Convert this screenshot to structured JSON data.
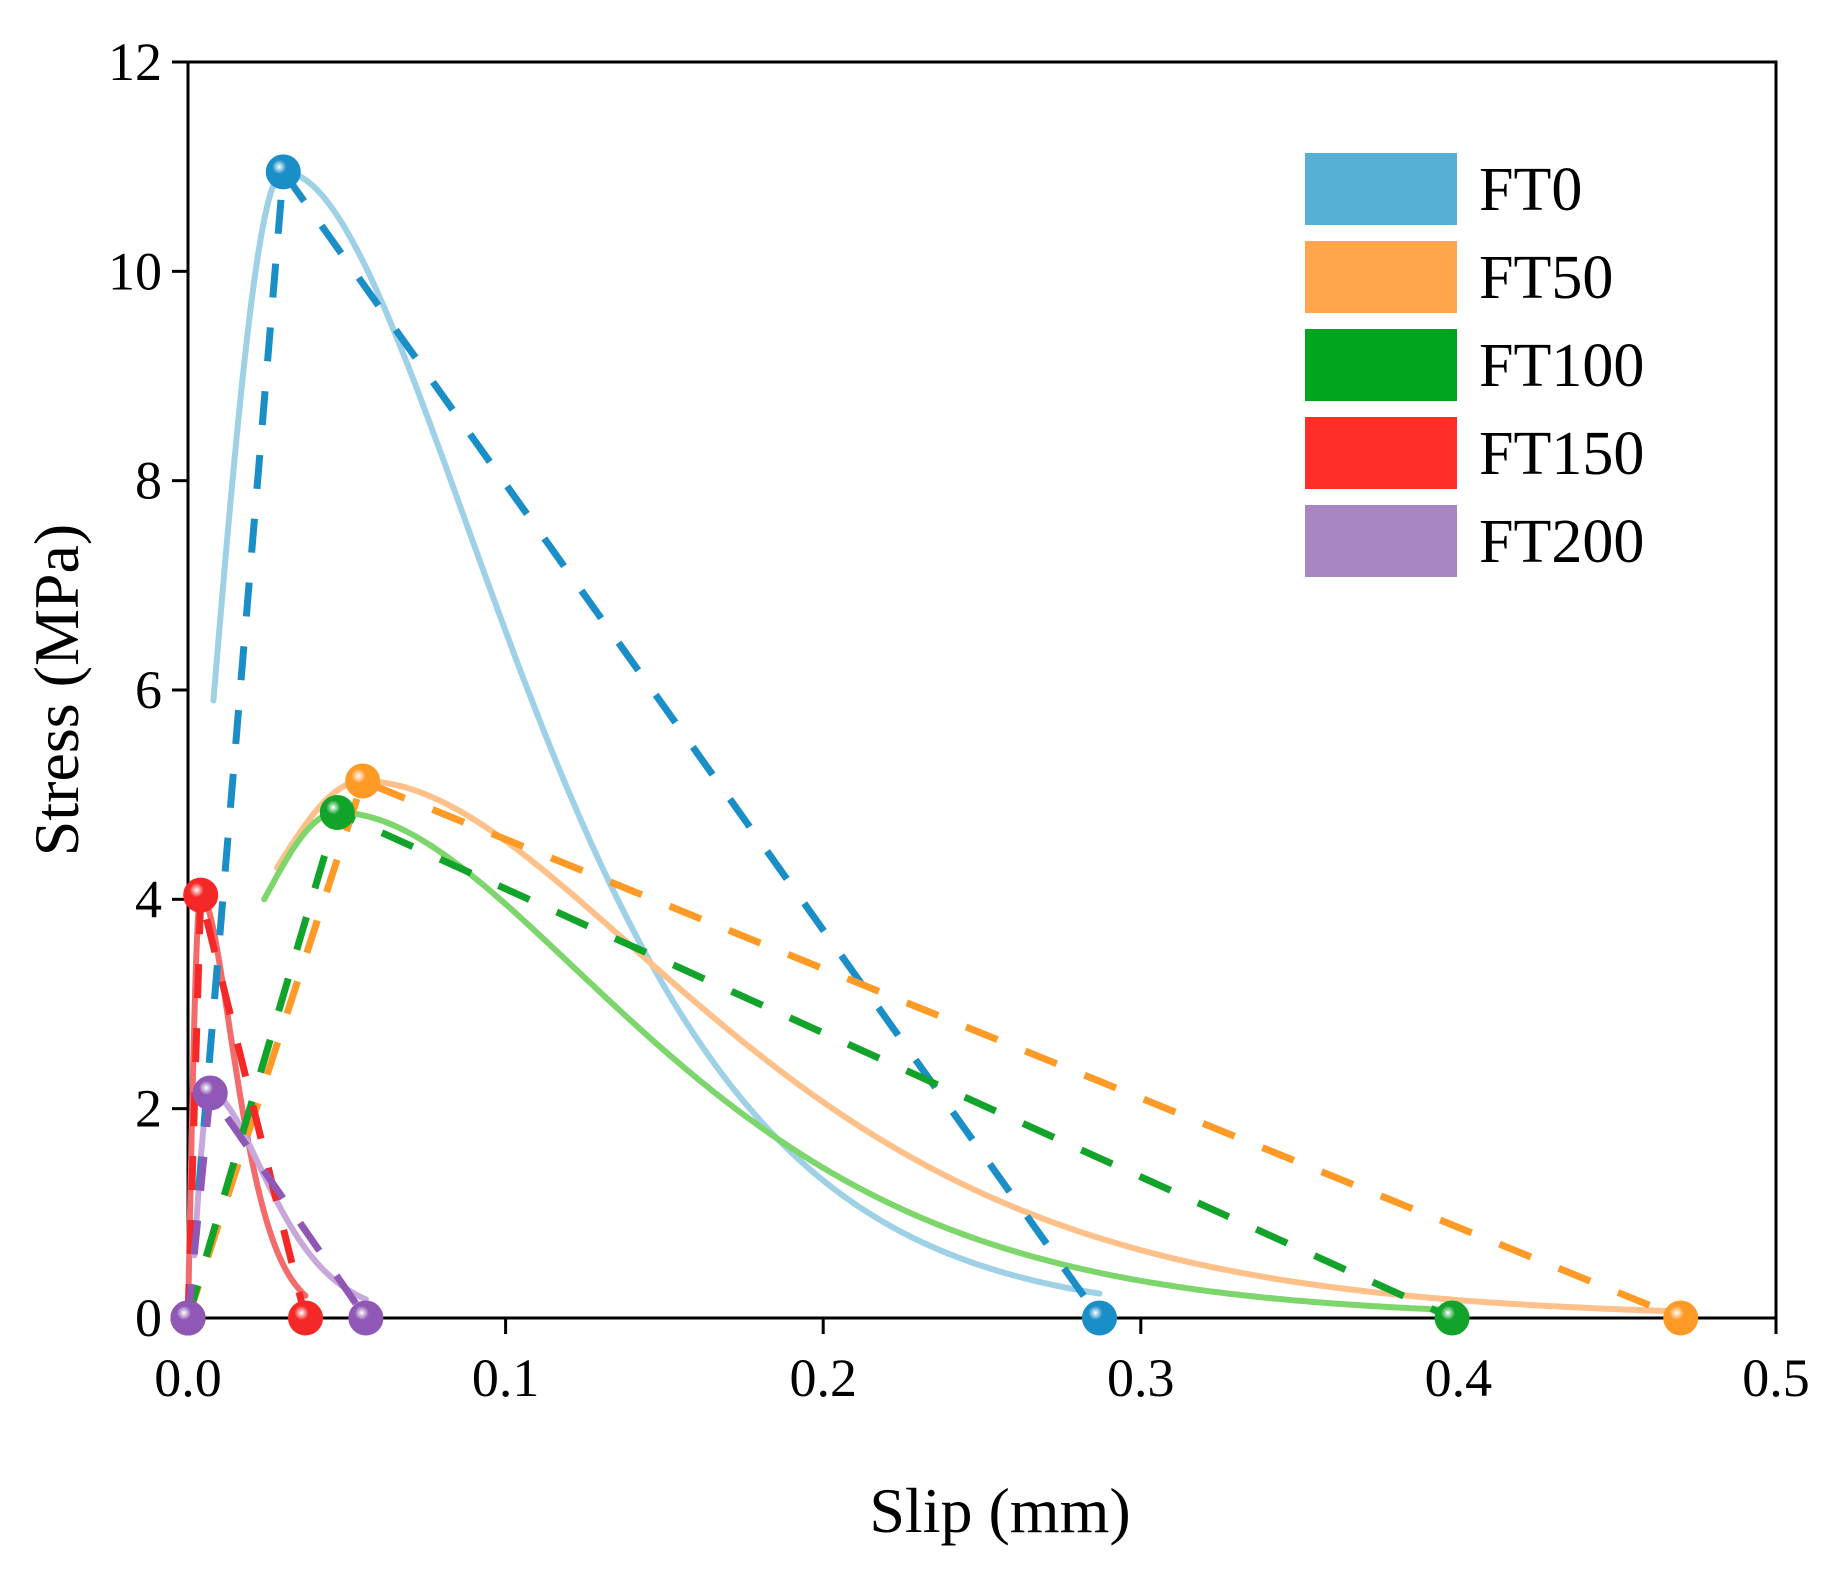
{
  "chart_data": {
    "type": "line",
    "title": "",
    "xlabel": "Slip (mm)",
    "ylabel": "Stress (MPa)",
    "xlim": [
      0,
      0.5
    ],
    "ylim": [
      0,
      12
    ],
    "xticks": [
      "0.0",
      "0.1",
      "0.2",
      "0.3",
      "0.4",
      "0.5"
    ],
    "yticks": [
      "0",
      "2",
      "4",
      "6",
      "8",
      "10",
      "12"
    ],
    "grid": false,
    "legend_position": "top-right",
    "series": [
      {
        "name": "FT0",
        "color": "#56b0d6",
        "fit_color": "#9ed0e6",
        "key_color": "#1a8fc7",
        "key_points": [
          [
            0,
            0
          ],
          [
            0.03,
            10.95
          ],
          [
            0.287,
            0
          ]
        ],
        "fit_curve": {
          "start": 0.008,
          "end": 0.287,
          "peak_x": 0.03,
          "peak_y": 10.95,
          "rise_start_y": 5.9,
          "decay_sigma": 0.058
        }
      },
      {
        "name": "FT50",
        "color": "#ffa64c",
        "fit_color": "#ffc089",
        "key_color": "#ff9a26",
        "key_points": [
          [
            0,
            0
          ],
          [
            0.055,
            5.13
          ],
          [
            0.47,
            0
          ]
        ],
        "fit_curve": {
          "start": 0.028,
          "end": 0.47,
          "peak_x": 0.055,
          "peak_y": 5.13,
          "rise_start_y": 4.3,
          "decay_sigma": 0.085
        }
      },
      {
        "name": "FT100",
        "color": "#00a51d",
        "fit_color": "#7dd66b",
        "key_color": "#12a32b",
        "key_points": [
          [
            0,
            0
          ],
          [
            0.047,
            4.83
          ],
          [
            0.398,
            0
          ]
        ],
        "fit_curve": {
          "start": 0.024,
          "end": 0.398,
          "peak_x": 0.047,
          "peak_y": 4.83,
          "rise_start_y": 4.0,
          "decay_sigma": 0.075
        }
      },
      {
        "name": "FT150",
        "color": "#ff2e26",
        "fit_color": "#f36b6b",
        "key_color": "#f52828",
        "key_points": [
          [
            0,
            0
          ],
          [
            0.004,
            4.04
          ],
          [
            0.037,
            0
          ]
        ],
        "fit_curve": {
          "start": 0.0,
          "end": 0.037,
          "peak_x": 0.004,
          "peak_y": 4.04,
          "rise_start_y": 0.0,
          "decay_sigma": 0.009
        }
      },
      {
        "name": "FT200",
        "color": "#a985c3",
        "fit_color": "#c8a8da",
        "key_color": "#8f58b6",
        "key_points": [
          [
            0,
            0
          ],
          [
            0.007,
            2.15
          ],
          [
            0.056,
            0
          ]
        ],
        "fit_curve": {
          "start": 0.002,
          "end": 0.056,
          "peak_x": 0.007,
          "peak_y": 2.15,
          "rise_start_y": 0.6,
          "decay_sigma": 0.015
        }
      }
    ]
  }
}
